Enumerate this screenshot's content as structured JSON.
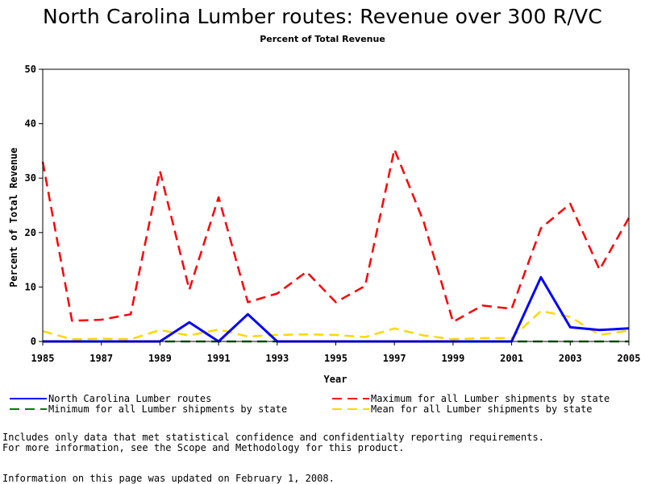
{
  "chart_data": {
    "type": "line",
    "title": "North Carolina Lumber routes: Revenue over 300 R/VC",
    "subtitle": "Percent of Total Revenue",
    "xlabel": "Year",
    "ylabel": "Percent of Total Revenue",
    "xlim": [
      1985,
      2005
    ],
    "ylim": [
      0,
      50
    ],
    "x_ticks": [
      "1985",
      "1987",
      "1989",
      "1991",
      "1993",
      "1995",
      "1997",
      "1999",
      "2001",
      "2003",
      "2005"
    ],
    "y_ticks": [
      "0",
      "10",
      "20",
      "30",
      "40",
      "50"
    ],
    "x": [
      1985,
      1986,
      1987,
      1988,
      1989,
      1990,
      1991,
      1992,
      1993,
      1994,
      1995,
      1996,
      1997,
      1998,
      1999,
      2000,
      2001,
      2002,
      2003,
      2004,
      2005
    ],
    "grid": false,
    "legend_position": "bottom",
    "series": [
      {
        "name": "North Carolina Lumber routes",
        "color": "#0000ff",
        "dash": "solid",
        "values": [
          0,
          0,
          0,
          0,
          0,
          3.5,
          0,
          5,
          0,
          0,
          0,
          0,
          0,
          0,
          0,
          0,
          0,
          11.8,
          2.6,
          2.1,
          2.4
        ]
      },
      {
        "name": "Maximum for all Lumber shipments by state",
        "color": "#ff0000",
        "dash": "dashed",
        "values": [
          33,
          3.8,
          4,
          5,
          31.3,
          9.5,
          26.5,
          7.2,
          8.8,
          12.8,
          7.2,
          10.2,
          35.3,
          22,
          3.6,
          6.6,
          6,
          20.8,
          25.3,
          13.2,
          22.7
        ]
      },
      {
        "name": "Minimum for all Lumber shipments by state",
        "color": "#008000",
        "dash": "dashed",
        "values": [
          0,
          0,
          0,
          0,
          0,
          0,
          0,
          0,
          0,
          0,
          0,
          0,
          0,
          0,
          0,
          0,
          0,
          0,
          0,
          0,
          0
        ]
      },
      {
        "name": "Mean for all Lumber shipments by state",
        "color": "#ffd700",
        "dash": "dashed",
        "values": [
          1.9,
          0.4,
          0.5,
          0.4,
          2.1,
          1.1,
          2.2,
          0.9,
          1.2,
          1.3,
          1.2,
          0.8,
          2.4,
          1.1,
          0.4,
          0.6,
          0.6,
          5.6,
          4.5,
          1.2,
          2
        ]
      }
    ]
  },
  "notes": {
    "line1": "Includes only data that met statistical confidence and confidentialty reporting requirements.",
    "line2": "For more information, see the Scope and Methodology for this product.",
    "line3": "Information on this page was updated on February 1, 2008."
  }
}
